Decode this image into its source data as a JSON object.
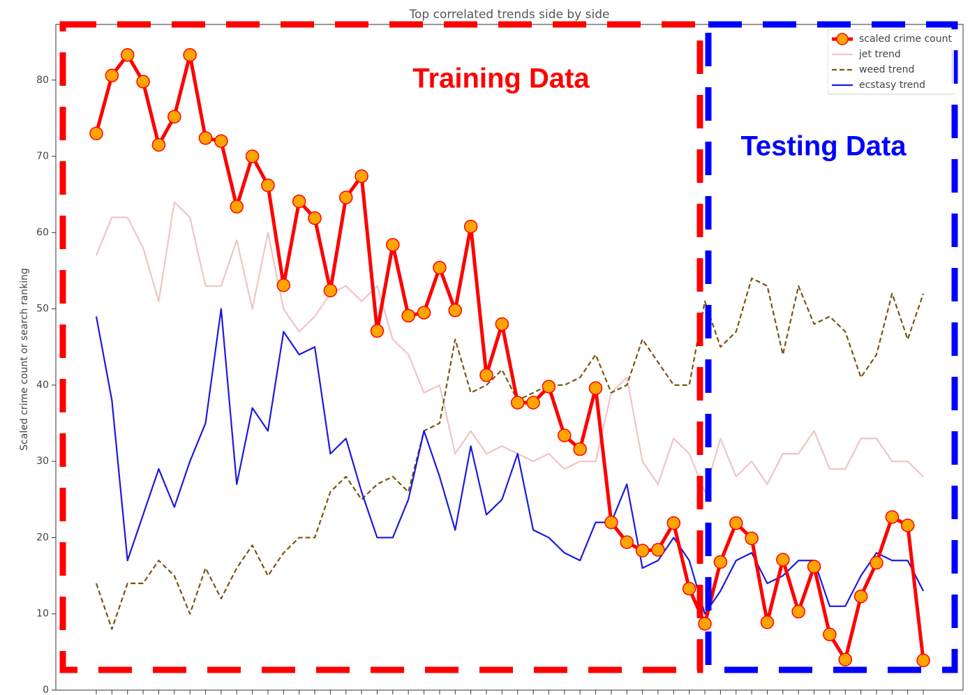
{
  "chart_data": {
    "type": "line",
    "title": "Top correlated trends side by side",
    "y_label": "Scaled crime count or search ranking",
    "categories": [
      null,
      null,
      null,
      null,
      null,
      null,
      null,
      null,
      null,
      null,
      null,
      null,
      null,
      null,
      null,
      null,
      null,
      null,
      null,
      null,
      null,
      null,
      null,
      null,
      null,
      null,
      null,
      null,
      null,
      null,
      null,
      null,
      null,
      null,
      null,
      null,
      null,
      null,
      null,
      null,
      null,
      null,
      null,
      null,
      null,
      null,
      null,
      null,
      null,
      null,
      null,
      null,
      null,
      null
    ],
    "series": [
      {
        "name": "scaled crime count",
        "color": "#ff0000",
        "marker": "circle",
        "marker_color": "#ffa500",
        "linestyle": "solid",
        "values": [
          73,
          80.6,
          83.3,
          79.8,
          71.5,
          75.2,
          83.3,
          72.4,
          72,
          63.4,
          70,
          66.2,
          53.1,
          64.1,
          61.9,
          52.4,
          64.6,
          67.4,
          47.1,
          58.4,
          49.1,
          49.5,
          55.4,
          49.8,
          60.8,
          41.3,
          48,
          37.7,
          37.7,
          39.8,
          33.4,
          31.6,
          39.6,
          22,
          19.4,
          18.3,
          18.4,
          21.9,
          13.3,
          8.7,
          16.8,
          21.9,
          19.9,
          8.9,
          17.1,
          10.3,
          16.2,
          7.3,
          4,
          12.3,
          16.7,
          22.7,
          21.6,
          3.9
        ]
      },
      {
        "name": "jet trend",
        "color": "#f0c4c4",
        "linestyle": "solid",
        "values": [
          57,
          62,
          62,
          58,
          51,
          64,
          62,
          53,
          53,
          59,
          50,
          60,
          50,
          47,
          49,
          52,
          53,
          51,
          53,
          46,
          44,
          39,
          40,
          31,
          34,
          31,
          32,
          31,
          30,
          31,
          29,
          30,
          30,
          39,
          41,
          30,
          27,
          33,
          31,
          26,
          33,
          28,
          30,
          27,
          31,
          31,
          34,
          29,
          29,
          33,
          33,
          30,
          30,
          28
        ]
      },
      {
        "name": "weed trend",
        "color": "#7a5510",
        "linestyle": "dashed",
        "values": [
          14,
          8,
          14,
          14,
          17,
          15,
          10,
          16,
          12,
          16,
          19,
          15,
          18,
          20,
          20,
          26,
          28,
          25,
          27,
          28,
          26,
          34,
          35,
          46,
          39,
          40,
          42,
          38,
          39,
          40,
          40,
          41,
          44,
          39,
          40,
          46,
          43,
          40,
          40,
          51,
          45,
          47,
          54,
          53,
          44,
          53,
          48,
          49,
          47,
          41,
          44,
          52,
          46,
          52
        ]
      },
      {
        "name": "ecstasy trend",
        "color": "#1a1ae0",
        "linestyle": "solid",
        "values": [
          49,
          38,
          17,
          23,
          29,
          24,
          30,
          35,
          50,
          27,
          37,
          34,
          47,
          44,
          45,
          31,
          33,
          26,
          20,
          20,
          25,
          34,
          28,
          21,
          32,
          23,
          25,
          31,
          21,
          20,
          18,
          17,
          22,
          22,
          27,
          16,
          17,
          20,
          17,
          10,
          13,
          17,
          18,
          14,
          15,
          17,
          17,
          11,
          11,
          15,
          18,
          17,
          17,
          13
        ]
      }
    ],
    "ylim": [
      0,
      87.3
    ],
    "yticks": [
      0,
      10,
      20,
      30,
      40,
      50,
      60,
      70,
      80
    ],
    "legend": "upper right",
    "annotations": [
      {
        "text": "Training Data",
        "color": "#ff0000"
      },
      {
        "text": "Testing Data",
        "color": "#0000ff"
      }
    ]
  }
}
